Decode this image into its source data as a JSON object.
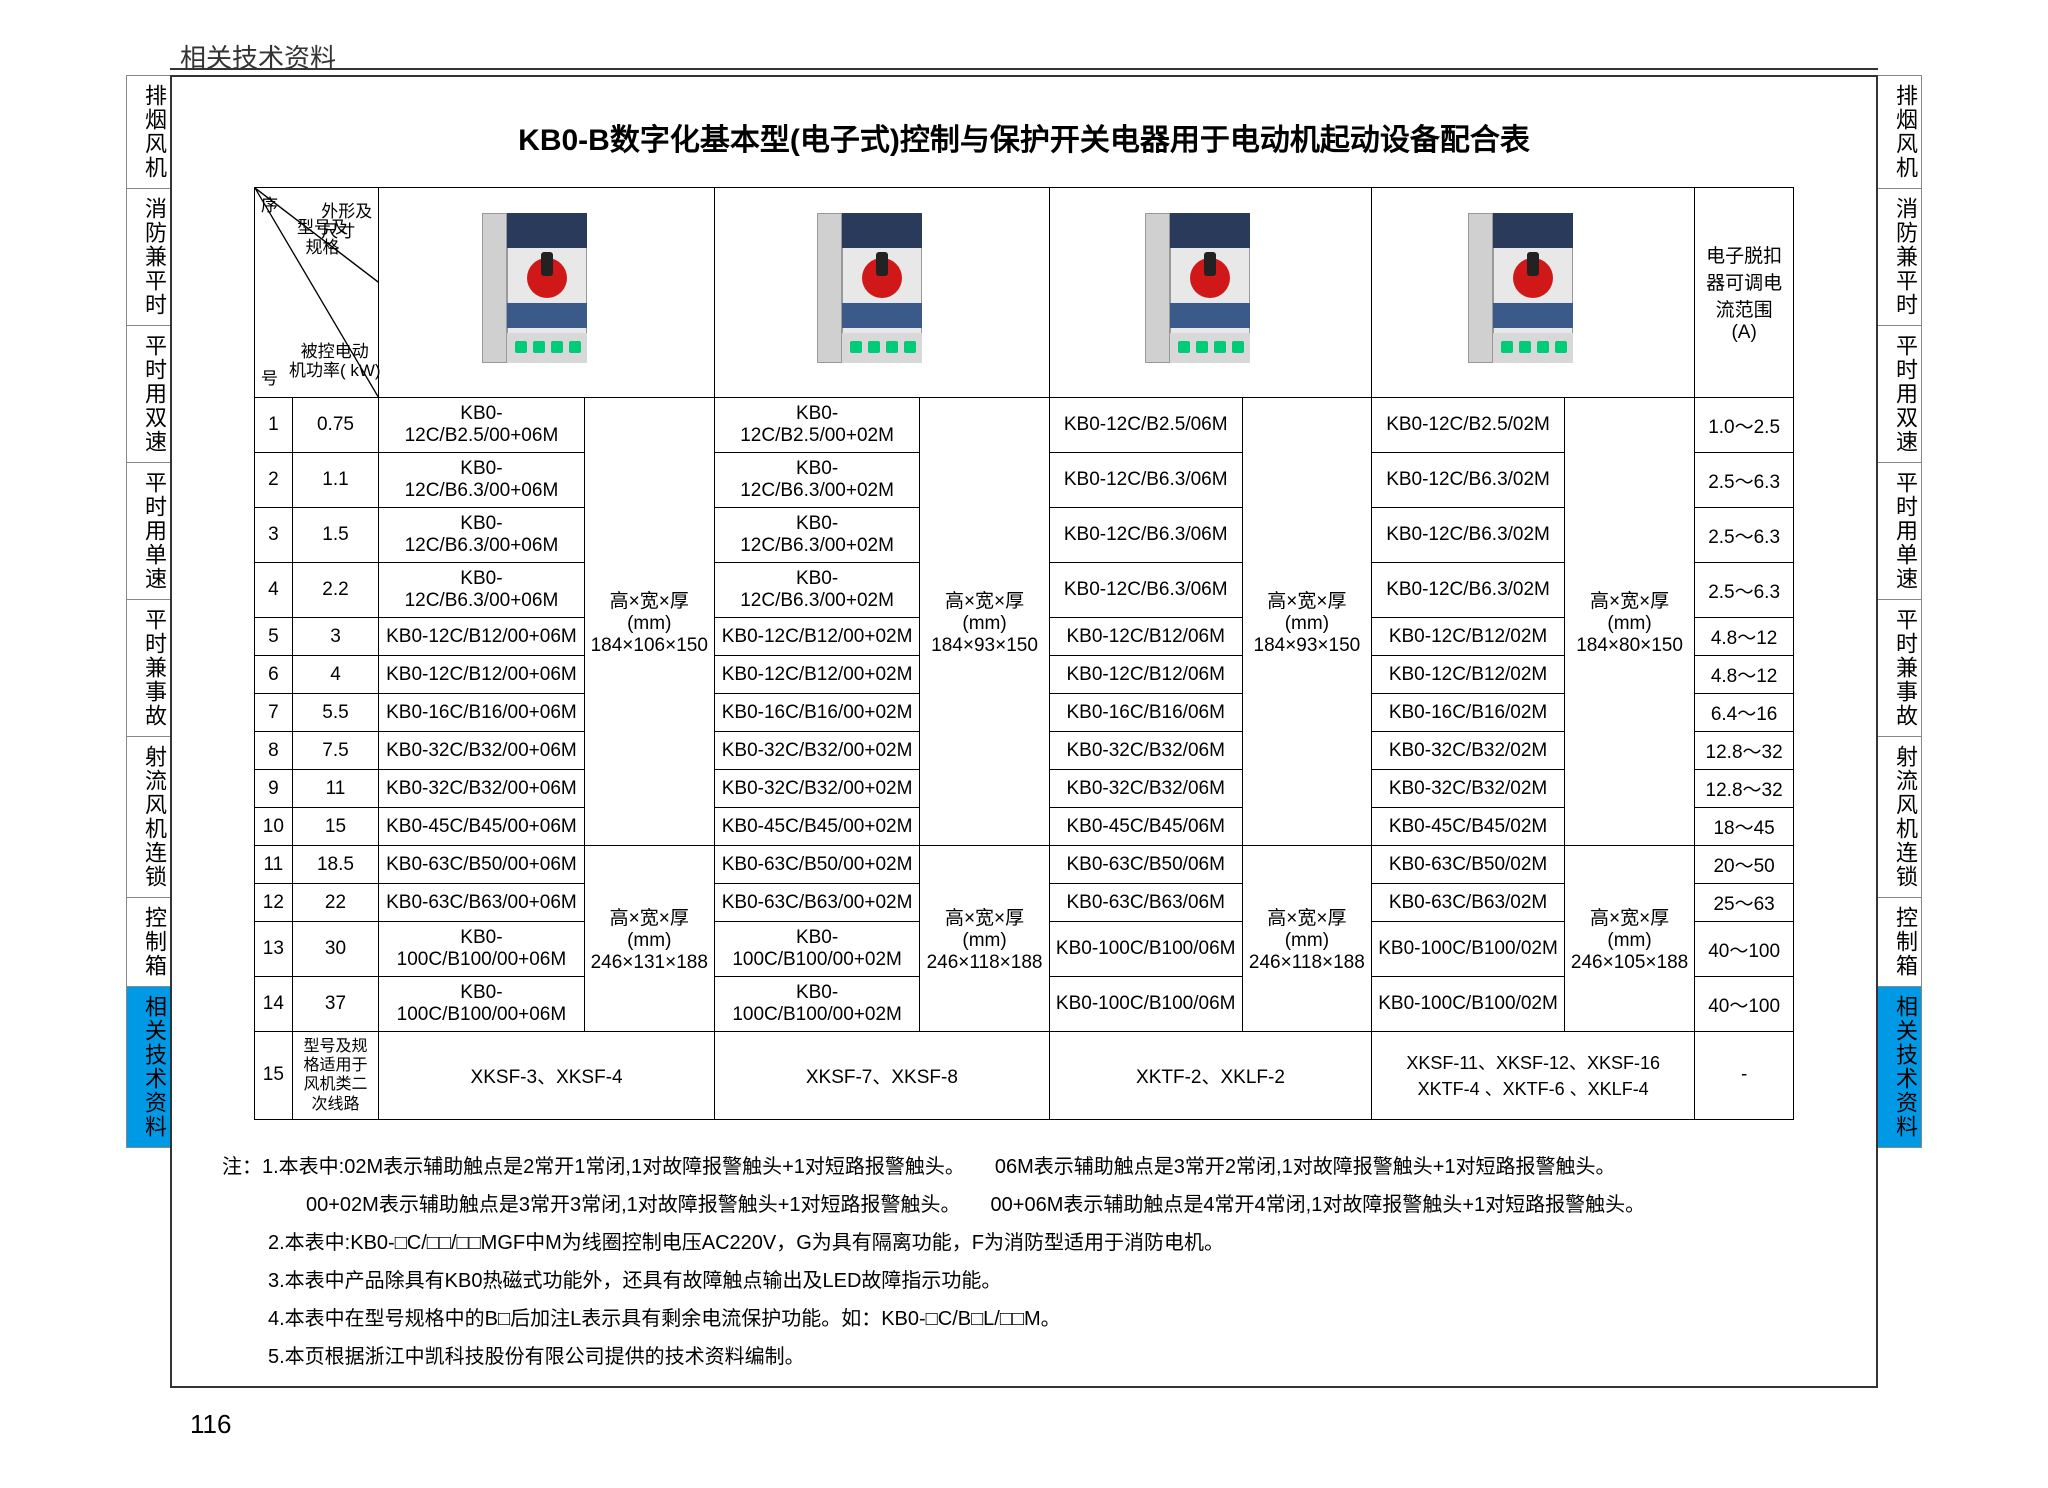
{
  "header": "相关技术资料",
  "page_number": "116",
  "title": "KB0-B数字化基本型(电子式)控制与保护开关电器用于电动机起动设备配合表",
  "sidebar_tabs": [
    {
      "label": "排烟风机",
      "active": false
    },
    {
      "label": "消防兼平时",
      "active": false
    },
    {
      "label": "平时用双速",
      "active": false
    },
    {
      "label": "平时用单速",
      "active": false
    },
    {
      "label": "平时兼事故",
      "active": false
    },
    {
      "label": "射流风机连锁",
      "active": false
    },
    {
      "label": "控制箱",
      "active": false
    },
    {
      "label": "相关技术资料",
      "active": true
    }
  ],
  "corner_labels": {
    "seq": "序",
    "seq2": "号",
    "model": "型号及\n规格",
    "shape": "外形及\n尺寸",
    "power": "被控电动\n机功率( kW)"
  },
  "col_last_header": "电子脱扣器可调电流范围(A)",
  "dim_label": "高×宽×厚\n(mm)",
  "dims": [
    "184×106×150",
    "184×93×150",
    "184×93×150",
    "184×80×150"
  ],
  "dims2": [
    "246×131×188",
    "246×118×188",
    "246×118×188",
    "246×105×188"
  ],
  "rows": [
    {
      "n": "1",
      "kw": "0.75",
      "m": [
        "KB0-12C/B2.5/00+06M",
        "KB0-12C/B2.5/00+02M",
        "KB0-12C/B2.5/06M",
        "KB0-12C/B2.5/02M"
      ],
      "r": "1.0～2.5"
    },
    {
      "n": "2",
      "kw": "1.1",
      "m": [
        "KB0-12C/B6.3/00+06M",
        "KB0-12C/B6.3/00+02M",
        "KB0-12C/B6.3/06M",
        "KB0-12C/B6.3/02M"
      ],
      "r": "2.5～6.3"
    },
    {
      "n": "3",
      "kw": "1.5",
      "m": [
        "KB0-12C/B6.3/00+06M",
        "KB0-12C/B6.3/00+02M",
        "KB0-12C/B6.3/06M",
        "KB0-12C/B6.3/02M"
      ],
      "r": "2.5～6.3"
    },
    {
      "n": "4",
      "kw": "2.2",
      "m": [
        "KB0-12C/B6.3/00+06M",
        "KB0-12C/B6.3/00+02M",
        "KB0-12C/B6.3/06M",
        "KB0-12C/B6.3/02M"
      ],
      "r": "2.5～6.3"
    },
    {
      "n": "5",
      "kw": "3",
      "m": [
        "KB0-12C/B12/00+06M",
        "KB0-12C/B12/00+02M",
        "KB0-12C/B12/06M",
        "KB0-12C/B12/02M"
      ],
      "r": "4.8～12"
    },
    {
      "n": "6",
      "kw": "4",
      "m": [
        "KB0-12C/B12/00+06M",
        "KB0-12C/B12/00+02M",
        "KB0-12C/B12/06M",
        "KB0-12C/B12/02M"
      ],
      "r": "4.8～12"
    },
    {
      "n": "7",
      "kw": "5.5",
      "m": [
        "KB0-16C/B16/00+06M",
        "KB0-16C/B16/00+02M",
        "KB0-16C/B16/06M",
        "KB0-16C/B16/02M"
      ],
      "r": "6.4～16"
    },
    {
      "n": "8",
      "kw": "7.5",
      "m": [
        "KB0-32C/B32/00+06M",
        "KB0-32C/B32/00+02M",
        "KB0-32C/B32/06M",
        "KB0-32C/B32/02M"
      ],
      "r": "12.8～32"
    },
    {
      "n": "9",
      "kw": "11",
      "m": [
        "KB0-32C/B32/00+06M",
        "KB0-32C/B32/00+02M",
        "KB0-32C/B32/06M",
        "KB0-32C/B32/02M"
      ],
      "r": "12.8～32"
    },
    {
      "n": "10",
      "kw": "15",
      "m": [
        "KB0-45C/B45/00+06M",
        "KB0-45C/B45/00+02M",
        "KB0-45C/B45/06M",
        "KB0-45C/B45/02M"
      ],
      "r": "18～45"
    },
    {
      "n": "11",
      "kw": "18.5",
      "m": [
        "KB0-63C/B50/00+06M",
        "KB0-63C/B50/00+02M",
        "KB0-63C/B50/06M",
        "KB0-63C/B50/02M"
      ],
      "r": "20～50"
    },
    {
      "n": "12",
      "kw": "22",
      "m": [
        "KB0-63C/B63/00+06M",
        "KB0-63C/B63/00+02M",
        "KB0-63C/B63/06M",
        "KB0-63C/B63/02M"
      ],
      "r": "25～63"
    },
    {
      "n": "13",
      "kw": "30",
      "m": [
        "KB0-100C/B100/00+06M",
        "KB0-100C/B100/00+02M",
        "KB0-100C/B100/06M",
        "KB0-100C/B100/02M"
      ],
      "r": "40～100"
    },
    {
      "n": "14",
      "kw": "37",
      "m": [
        "KB0-100C/B100/00+06M",
        "KB0-100C/B100/00+02M",
        "KB0-100C/B100/06M",
        "KB0-100C/B100/02M"
      ],
      "r": "40～100"
    }
  ],
  "row15": {
    "n": "15",
    "label": "型号及规格适用于风机类二次线路",
    "cells": [
      "XKSF-3、XKSF-4",
      "XKSF-7、XKSF-8",
      "XKTF-2、XKLF-2",
      "XKSF-11、XKSF-12、XKSF-16\nXKTF-4 、XKTF-6 、XKLF-4",
      "-"
    ]
  },
  "notes": {
    "prefix": "注：",
    "lines": [
      "1.本表中:02M表示辅助触点是2常开1常闭,1对故障报警触头+1对短路报警触头。　　06M表示辅助触点是3常开2常闭,1对故障报警触头+1对短路报警触头。",
      "　00+02M表示辅助触点是3常开3常闭,1对故障报警触头+1对短路报警触头。　　00+06M表示辅助触点是4常开4常闭,1对故障报警触头+1对短路报警触头。",
      "2.本表中:KB0-□C/□□/□□MGF中M为线圈控制电压AC220V，G为具有隔离功能，F为消防型适用于消防电机。",
      "3.本表中产品除具有KB0热磁式功能外，还具有故障触点输出及LED故障指示功能。",
      "4.本表中在型号规格中的B□后加注L表示具有剩余电流保护功能。如：KB0-□C/B□L/□□M。",
      "5.本页根据浙江中凯科技股份有限公司提供的技术资料编制。"
    ]
  },
  "colors": {
    "accent_blue": "#0099e5",
    "device_red": "#d01818",
    "device_navy": "#2a3a5a"
  }
}
